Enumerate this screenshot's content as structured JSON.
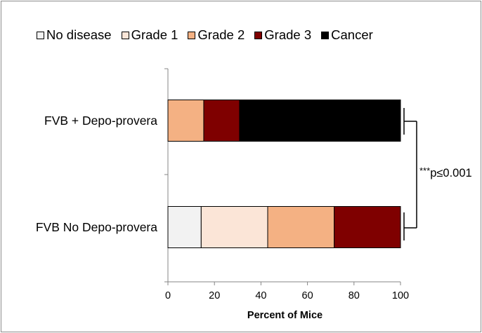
{
  "chart_data": {
    "type": "bar",
    "orientation": "horizontal",
    "stacked": true,
    "categories": [
      "FVB + Depo-provera",
      "FVB No Depo-provera"
    ],
    "series": [
      {
        "name": "No disease",
        "color": "#f2f2f2",
        "values": [
          0,
          14.3
        ]
      },
      {
        "name": "Grade 1",
        "color": "#fbe5d7",
        "values": [
          0,
          28.6
        ]
      },
      {
        "name": "Grade 2",
        "color": "#f4b183",
        "values": [
          15.4,
          28.6
        ]
      },
      {
        "name": "Grade 3",
        "color": "#7f0000",
        "values": [
          15.4,
          28.5
        ]
      },
      {
        "name": "Cancer",
        "color": "#000000",
        "values": [
          69.2,
          0
        ]
      }
    ],
    "xlabel": "Percent of Mice",
    "xlim": [
      0,
      100
    ],
    "xticks": [
      "0",
      "20",
      "40",
      "60",
      "80",
      "100"
    ],
    "legend_position": "top",
    "annotation": {
      "stars": "***",
      "text": "p≤0.001"
    }
  }
}
